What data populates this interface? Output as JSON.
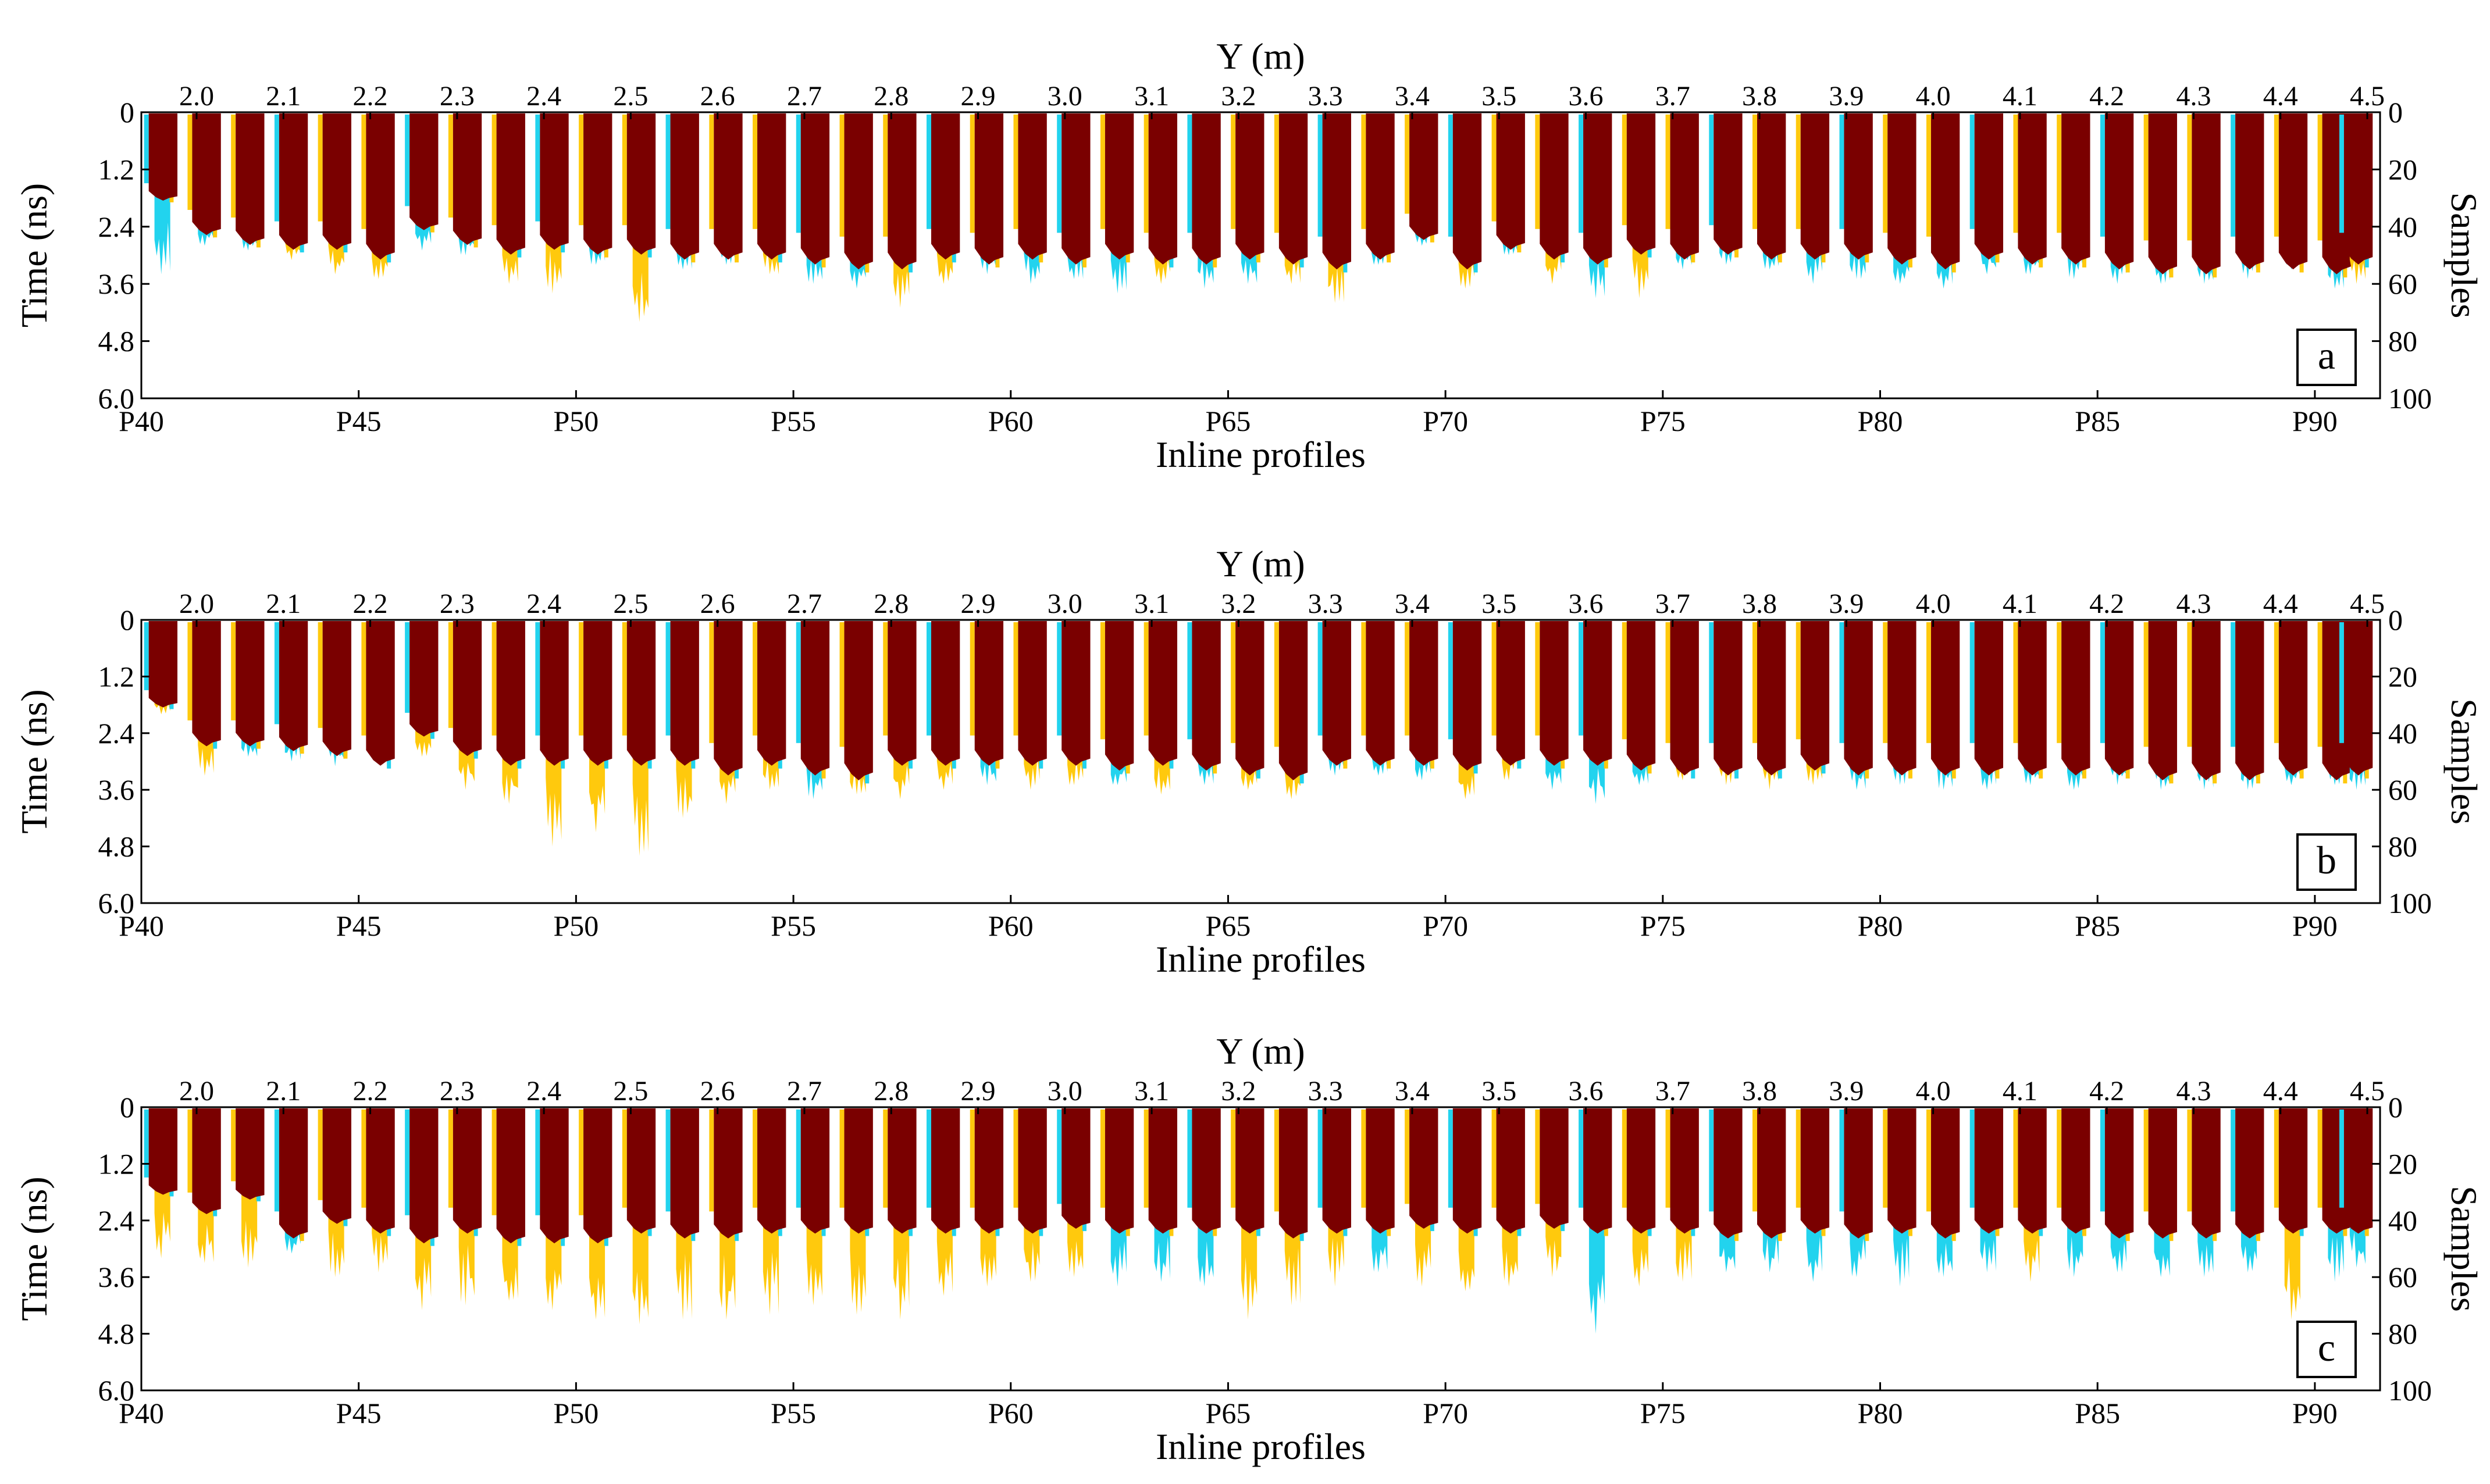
{
  "figure": {
    "colors": {
      "dark": "#7a0000",
      "yellow": "#ffc90d",
      "cyan": "#22d3ee",
      "axis": "#000000"
    },
    "panels_meta": {
      "top_axis_title": "Y (m)",
      "left_axis_title": "Time (ns)",
      "right_axis_title": "Samples",
      "bottom_axis_title": "Inline profiles"
    }
  },
  "chart_data": [
    {
      "type": "heatmap",
      "panel": "a",
      "title": "a",
      "xlabel": "Inline profiles",
      "ylabel": "Time (ns)",
      "y2label": "Samples",
      "x2label": "Y (m)",
      "xlim": [
        40,
        91.5
      ],
      "ylim": [
        6.0,
        0
      ],
      "y2lim": [
        100,
        0
      ],
      "bottom_ticks": [
        "P40",
        "P45",
        "P50",
        "P55",
        "P60",
        "P65",
        "P70",
        "P75",
        "P80",
        "P85",
        "P90"
      ],
      "top_ticks": [
        "2.0",
        "2.1",
        "2.2",
        "2.3",
        "2.4",
        "2.5",
        "2.6",
        "2.7",
        "2.8",
        "2.9",
        "3.0",
        "3.1",
        "3.2",
        "3.3",
        "3.4",
        "3.5",
        "3.6",
        "3.7",
        "3.8",
        "3.9",
        "4.0",
        "4.1",
        "4.2",
        "4.3",
        "4.4",
        "4.5"
      ],
      "left_ticks": [
        "0",
        "1.2",
        "2.4",
        "3.6",
        "4.8",
        "6.0"
      ],
      "right_ticks": [
        "0",
        "20",
        "40",
        "60",
        "80",
        "100"
      ],
      "profiles_x": [
        40.5,
        41.5,
        42.5,
        43.5,
        44.5,
        45.5,
        46.5,
        47.5,
        48.5,
        49.5,
        50.5,
        51.5,
        52.5,
        53.5,
        54.5,
        55.5,
        56.5,
        57.5,
        58.5,
        59.5,
        60.5,
        61.5,
        62.5,
        63.5,
        64.5,
        65.5,
        66.5,
        67.5,
        68.5,
        69.5,
        70.5,
        71.5,
        72.5,
        73.5,
        74.5,
        75.5,
        76.5,
        77.5,
        78.5,
        79.5,
        80.5,
        81.5,
        82.5,
        83.5,
        84.5,
        85.5,
        86.5,
        87.5,
        88.5,
        89.5,
        90.5,
        91.0
      ],
      "dark_depth_ns": [
        1.8,
        2.5,
        2.7,
        2.8,
        2.8,
        3.0,
        2.4,
        2.7,
        2.9,
        2.8,
        2.9,
        2.9,
        3.0,
        3.0,
        3.0,
        3.1,
        3.2,
        3.2,
        3.0,
        3.1,
        3.0,
        3.1,
        3.0,
        3.1,
        3.1,
        3.0,
        3.1,
        3.2,
        3.0,
        2.6,
        3.2,
        2.8,
        3.0,
        3.1,
        2.9,
        3.0,
        2.9,
        3.0,
        3.0,
        3.0,
        3.1,
        3.2,
        3.0,
        3.1,
        3.1,
        3.2,
        3.3,
        3.3,
        3.2,
        3.2,
        3.3,
        3.1
      ],
      "max_depth_ns": [
        3.4,
        2.8,
        2.9,
        3.1,
        3.4,
        3.5,
        2.9,
        3.0,
        3.6,
        3.8,
        3.2,
        4.4,
        3.3,
        3.2,
        3.4,
        3.6,
        3.7,
        4.1,
        3.6,
        3.4,
        3.6,
        3.5,
        3.8,
        3.6,
        3.7,
        3.6,
        3.6,
        4.0,
        3.2,
        2.8,
        3.7,
        3.0,
        3.6,
        3.9,
        3.9,
        3.3,
        3.2,
        3.3,
        3.6,
        3.5,
        3.6,
        3.7,
        3.4,
        3.4,
        3.5,
        3.6,
        3.6,
        3.6,
        3.5,
        3.3,
        3.7,
        3.6
      ],
      "tail_color": [
        "cyan",
        "cyan",
        "cyan",
        "yellow",
        "yellow",
        "yellow",
        "cyan",
        "cyan",
        "yellow",
        "yellow",
        "cyan",
        "yellow",
        "cyan",
        "cyan",
        "yellow",
        "cyan",
        "cyan",
        "yellow",
        "yellow",
        "cyan",
        "cyan",
        "cyan",
        "cyan",
        "yellow",
        "cyan",
        "cyan",
        "yellow",
        "yellow",
        "cyan",
        "cyan",
        "yellow",
        "cyan",
        "yellow",
        "cyan",
        "yellow",
        "cyan",
        "cyan",
        "cyan",
        "cyan",
        "cyan",
        "cyan",
        "cyan",
        "cyan",
        "cyan",
        "cyan",
        "cyan",
        "cyan",
        "cyan",
        "cyan",
        "cyan",
        "cyan",
        "yellow"
      ]
    },
    {
      "type": "heatmap",
      "panel": "b",
      "title": "b",
      "xlabel": "Inline profiles",
      "ylabel": "Time (ns)",
      "y2label": "Samples",
      "x2label": "Y (m)",
      "xlim": [
        40,
        91.5
      ],
      "ylim": [
        6.0,
        0
      ],
      "y2lim": [
        100,
        0
      ],
      "bottom_ticks": [
        "P40",
        "P45",
        "P50",
        "P55",
        "P60",
        "P65",
        "P70",
        "P75",
        "P80",
        "P85",
        "P90"
      ],
      "top_ticks": [
        "2.0",
        "2.1",
        "2.2",
        "2.3",
        "2.4",
        "2.5",
        "2.6",
        "2.7",
        "2.8",
        "2.9",
        "3.0",
        "3.1",
        "3.2",
        "3.3",
        "3.4",
        "3.5",
        "3.6",
        "3.7",
        "3.8",
        "3.9",
        "4.0",
        "4.1",
        "4.2",
        "4.3",
        "4.4",
        "4.5"
      ],
      "left_ticks": [
        "0",
        "1.2",
        "2.4",
        "3.6",
        "4.8",
        "6.0"
      ],
      "right_ticks": [
        "0",
        "20",
        "40",
        "60",
        "80",
        "100"
      ],
      "profiles_x": [
        40.5,
        41.5,
        42.5,
        43.5,
        44.5,
        45.5,
        46.5,
        47.5,
        48.5,
        49.5,
        50.5,
        51.5,
        52.5,
        53.5,
        54.5,
        55.5,
        56.5,
        57.5,
        58.5,
        59.5,
        60.5,
        61.5,
        62.5,
        63.5,
        64.5,
        65.5,
        66.5,
        67.5,
        68.5,
        69.5,
        70.5,
        71.5,
        72.5,
        73.5,
        74.5,
        75.5,
        76.5,
        77.5,
        78.5,
        79.5,
        80.5,
        81.5,
        82.5,
        83.5,
        84.5,
        85.5,
        86.5,
        87.5,
        88.5,
        89.5,
        90.5,
        91.0
      ],
      "dark_depth_ns": [
        1.8,
        2.6,
        2.6,
        2.7,
        2.8,
        3.0,
        2.4,
        2.8,
        3.0,
        3.0,
        3.0,
        3.0,
        3.0,
        3.2,
        3.0,
        3.2,
        3.3,
        3.0,
        3.0,
        3.0,
        3.0,
        3.0,
        3.1,
        3.0,
        3.1,
        3.2,
        3.3,
        3.0,
        3.0,
        3.0,
        3.1,
        3.0,
        3.0,
        3.0,
        3.1,
        3.2,
        3.2,
        3.2,
        3.1,
        3.2,
        3.2,
        3.2,
        3.2,
        3.2,
        3.2,
        3.2,
        3.3,
        3.3,
        3.3,
        3.2,
        3.3,
        3.2
      ],
      "max_depth_ns": [
        2.0,
        3.3,
        2.9,
        3.0,
        3.1,
        3.0,
        2.9,
        3.6,
        3.9,
        4.8,
        4.5,
        5.0,
        4.2,
        3.9,
        3.6,
        3.8,
        3.7,
        3.8,
        3.6,
        3.5,
        3.6,
        3.5,
        3.5,
        3.7,
        3.5,
        3.6,
        3.8,
        3.3,
        3.3,
        3.4,
        3.8,
        3.4,
        3.6,
        3.9,
        3.5,
        3.4,
        3.5,
        3.6,
        3.5,
        3.6,
        3.5,
        3.6,
        3.6,
        3.5,
        3.6,
        3.5,
        3.6,
        3.6,
        3.6,
        3.5,
        3.5,
        3.6
      ],
      "tail_color": [
        "yellow",
        "yellow",
        "cyan",
        "cyan",
        "cyan",
        "yellow",
        "yellow",
        "yellow",
        "yellow",
        "yellow",
        "yellow",
        "yellow",
        "yellow",
        "yellow",
        "yellow",
        "cyan",
        "yellow",
        "yellow",
        "yellow",
        "cyan",
        "yellow",
        "yellow",
        "cyan",
        "yellow",
        "cyan",
        "yellow",
        "yellow",
        "cyan",
        "cyan",
        "cyan",
        "yellow",
        "yellow",
        "cyan",
        "cyan",
        "cyan",
        "yellow",
        "yellow",
        "yellow",
        "yellow",
        "cyan",
        "cyan",
        "cyan",
        "cyan",
        "cyan",
        "cyan",
        "cyan",
        "cyan",
        "cyan",
        "cyan",
        "cyan",
        "cyan",
        "cyan"
      ]
    },
    {
      "type": "heatmap",
      "panel": "c",
      "title": "c",
      "xlabel": "Inline profiles",
      "ylabel": "Time (ns)",
      "y2label": "Samples",
      "x2label": "Y (m)",
      "xlim": [
        40,
        91.5
      ],
      "ylim": [
        6.0,
        0
      ],
      "y2lim": [
        100,
        0
      ],
      "bottom_ticks": [
        "P40",
        "P45",
        "P50",
        "P55",
        "P60",
        "P65",
        "P70",
        "P75",
        "P80",
        "P85",
        "P90"
      ],
      "top_ticks": [
        "2.0",
        "2.1",
        "2.2",
        "2.3",
        "2.4",
        "2.5",
        "2.6",
        "2.7",
        "2.8",
        "2.9",
        "3.0",
        "3.1",
        "3.2",
        "3.3",
        "3.4",
        "3.5",
        "3.6",
        "3.7",
        "3.8",
        "3.9",
        "4.0",
        "4.1",
        "4.2",
        "4.3",
        "4.4",
        "4.5"
      ],
      "left_ticks": [
        "0",
        "1.2",
        "2.4",
        "3.6",
        "4.8",
        "6.0"
      ],
      "right_ticks": [
        "0",
        "20",
        "40",
        "60",
        "80",
        "100"
      ],
      "profiles_x": [
        40.5,
        41.5,
        42.5,
        43.5,
        44.5,
        45.5,
        46.5,
        47.5,
        48.5,
        49.5,
        50.5,
        51.5,
        52.5,
        53.5,
        54.5,
        55.5,
        56.5,
        57.5,
        58.5,
        59.5,
        60.5,
        61.5,
        62.5,
        63.5,
        64.5,
        65.5,
        66.5,
        67.5,
        68.5,
        69.5,
        70.5,
        71.5,
        72.5,
        73.5,
        74.5,
        75.5,
        76.5,
        77.5,
        78.5,
        79.5,
        80.5,
        81.5,
        82.5,
        83.5,
        84.5,
        85.5,
        86.5,
        87.5,
        88.5,
        89.5,
        90.5,
        91.0
      ],
      "dark_depth_ns": [
        1.8,
        2.2,
        1.9,
        2.7,
        2.4,
        2.6,
        2.8,
        2.6,
        2.8,
        2.8,
        2.8,
        2.6,
        2.7,
        2.7,
        2.6,
        2.6,
        2.6,
        2.6,
        2.6,
        2.6,
        2.6,
        2.5,
        2.6,
        2.6,
        2.6,
        2.6,
        2.7,
        2.6,
        2.6,
        2.5,
        2.6,
        2.6,
        2.5,
        2.6,
        2.6,
        2.6,
        2.7,
        2.7,
        2.6,
        2.7,
        2.6,
        2.7,
        2.6,
        2.6,
        2.6,
        2.7,
        2.7,
        2.7,
        2.7,
        2.6,
        2.6,
        2.6
      ],
      "max_depth_ns": [
        3.2,
        3.3,
        3.4,
        3.1,
        3.6,
        3.5,
        4.3,
        4.2,
        4.1,
        4.3,
        4.5,
        4.6,
        4.5,
        4.5,
        4.4,
        4.2,
        4.4,
        4.5,
        4.0,
        3.8,
        3.7,
        3.6,
        3.8,
        3.7,
        3.8,
        4.5,
        4.2,
        3.8,
        3.5,
        3.8,
        3.9,
        3.8,
        3.6,
        4.8,
        3.8,
        3.7,
        3.5,
        3.5,
        3.7,
        3.6,
        3.8,
        3.6,
        3.5,
        3.7,
        3.6,
        3.5,
        3.6,
        3.6,
        3.5,
        4.5,
        3.7,
        3.4
      ],
      "tail_color": [
        "yellow",
        "yellow",
        "yellow",
        "cyan",
        "yellow",
        "yellow",
        "yellow",
        "yellow",
        "yellow",
        "yellow",
        "yellow",
        "yellow",
        "yellow",
        "yellow",
        "yellow",
        "yellow",
        "yellow",
        "yellow",
        "yellow",
        "yellow",
        "yellow",
        "yellow",
        "cyan",
        "cyan",
        "cyan",
        "yellow",
        "yellow",
        "yellow",
        "cyan",
        "yellow",
        "yellow",
        "yellow",
        "yellow",
        "cyan",
        "yellow",
        "yellow",
        "cyan",
        "cyan",
        "cyan",
        "cyan",
        "cyan",
        "cyan",
        "cyan",
        "yellow",
        "cyan",
        "cyan",
        "cyan",
        "cyan",
        "cyan",
        "yellow",
        "cyan",
        "cyan"
      ]
    }
  ]
}
